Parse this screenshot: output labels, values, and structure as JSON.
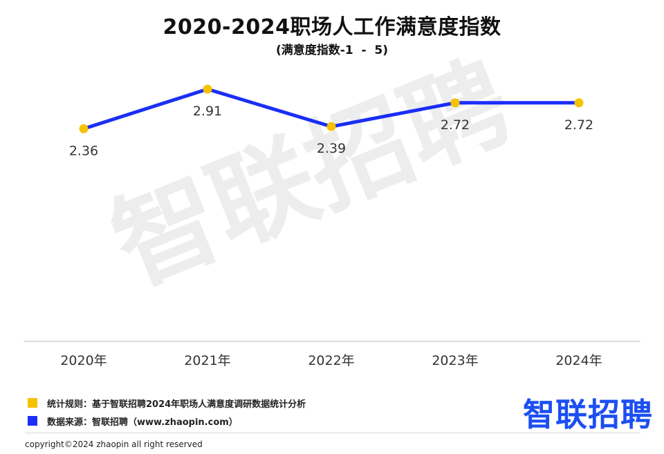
{
  "header": {
    "title": "2020-2024职场人工作满意度指数",
    "subtitle": "(满意度指数-1  -  5)"
  },
  "watermark": "智联招聘",
  "chart_data": {
    "type": "line",
    "categories": [
      "2020年",
      "2021年",
      "2022年",
      "2023年",
      "2024年"
    ],
    "series": [
      {
        "values": [
          2.36,
          2.91,
          2.39,
          2.72,
          2.72
        ]
      }
    ],
    "value_labels": [
      "2.36",
      "2.91",
      "2.39",
      "2.72",
      "2.72"
    ],
    "line_color": "#1a2ef5",
    "marker_color": "#f5c200",
    "axis_color": "#d0d0d0",
    "grid": false,
    "legend": "none"
  },
  "footnotes": [
    {
      "text": "统计规则：基于智联招聘2024年职场人满意度调研数据统计分析",
      "color": "#f5c200"
    },
    {
      "text": "数据来源：智联招聘（www.zhaopin.com）",
      "color": "#1a2ef5"
    }
  ],
  "brand": {
    "logo_text": "智联招聘",
    "color": "#1c4ff2"
  },
  "copyright": "copyright©2024 zhaopin all right reserved"
}
